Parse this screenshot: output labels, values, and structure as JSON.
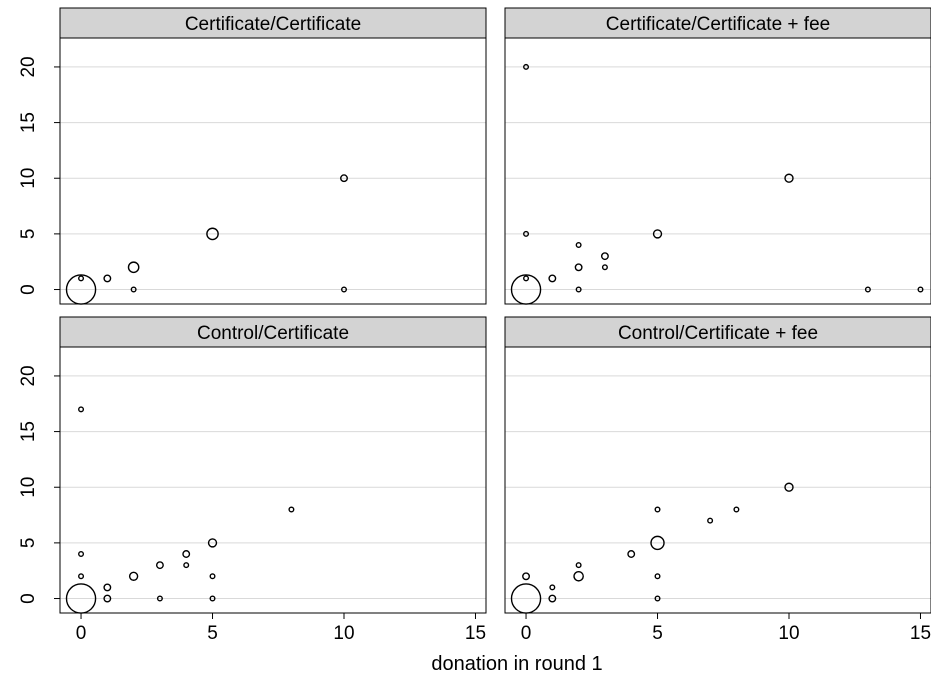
{
  "chart_data": {
    "type": "scatter",
    "xlabel": "donation in round 1",
    "ylabel": "",
    "xlim": [
      -0.8,
      15.4
    ],
    "ylim": [
      -1.3,
      22.6
    ],
    "xticks": [
      0,
      5,
      10,
      15
    ],
    "yticks": [
      0,
      5,
      10,
      15,
      20
    ],
    "grid": true,
    "marker_size_meaning": "point count",
    "panels": [
      {
        "title": "Certificate/Certificate",
        "points": [
          {
            "x": 0,
            "y": 0,
            "n": 40
          },
          {
            "x": 0,
            "y": 1,
            "n": 1
          },
          {
            "x": 1,
            "y": 1,
            "n": 2
          },
          {
            "x": 2,
            "y": 2,
            "n": 5
          },
          {
            "x": 2,
            "y": 0,
            "n": 1
          },
          {
            "x": 5,
            "y": 5,
            "n": 6
          },
          {
            "x": 10,
            "y": 10,
            "n": 2
          },
          {
            "x": 10,
            "y": 0,
            "n": 1
          }
        ]
      },
      {
        "title": "Certificate/Certificate + fee",
        "points": [
          {
            "x": 0,
            "y": 0,
            "n": 40
          },
          {
            "x": 0,
            "y": 1,
            "n": 1
          },
          {
            "x": 0,
            "y": 5,
            "n": 1
          },
          {
            "x": 0,
            "y": 20,
            "n": 1
          },
          {
            "x": 1,
            "y": 1,
            "n": 2
          },
          {
            "x": 2,
            "y": 4,
            "n": 1
          },
          {
            "x": 2,
            "y": 2,
            "n": 2
          },
          {
            "x": 2,
            "y": 0,
            "n": 1
          },
          {
            "x": 3,
            "y": 3,
            "n": 2
          },
          {
            "x": 3,
            "y": 2,
            "n": 1
          },
          {
            "x": 5,
            "y": 5,
            "n": 3
          },
          {
            "x": 10,
            "y": 10,
            "n": 3
          },
          {
            "x": 13,
            "y": 0,
            "n": 1
          },
          {
            "x": 15,
            "y": 0,
            "n": 1
          }
        ]
      },
      {
        "title": "Control/Certificate",
        "points": [
          {
            "x": 0,
            "y": 0,
            "n": 40
          },
          {
            "x": 0,
            "y": 2,
            "n": 1
          },
          {
            "x": 0,
            "y": 4,
            "n": 1
          },
          {
            "x": 0,
            "y": 17,
            "n": 1
          },
          {
            "x": 1,
            "y": 1,
            "n": 2
          },
          {
            "x": 1,
            "y": 0,
            "n": 2
          },
          {
            "x": 2,
            "y": 2,
            "n": 3
          },
          {
            "x": 3,
            "y": 3,
            "n": 2
          },
          {
            "x": 3,
            "y": 0,
            "n": 1
          },
          {
            "x": 4,
            "y": 4,
            "n": 2
          },
          {
            "x": 4,
            "y": 3,
            "n": 1
          },
          {
            "x": 5,
            "y": 5,
            "n": 3
          },
          {
            "x": 5,
            "y": 2,
            "n": 1
          },
          {
            "x": 5,
            "y": 0,
            "n": 1
          },
          {
            "x": 8,
            "y": 8,
            "n": 1
          }
        ]
      },
      {
        "title": "Control/Certificate + fee",
        "points": [
          {
            "x": 0,
            "y": 0,
            "n": 40
          },
          {
            "x": 0,
            "y": 2,
            "n": 2
          },
          {
            "x": 1,
            "y": 1,
            "n": 1
          },
          {
            "x": 1,
            "y": 0,
            "n": 2
          },
          {
            "x": 2,
            "y": 3,
            "n": 1
          },
          {
            "x": 2,
            "y": 2,
            "n": 4
          },
          {
            "x": 4,
            "y": 4,
            "n": 2
          },
          {
            "x": 5,
            "y": 5,
            "n": 8
          },
          {
            "x": 5,
            "y": 8,
            "n": 1
          },
          {
            "x": 5,
            "y": 2,
            "n": 1
          },
          {
            "x": 5,
            "y": 0,
            "n": 1
          },
          {
            "x": 7,
            "y": 7,
            "n": 1
          },
          {
            "x": 8,
            "y": 8,
            "n": 1
          },
          {
            "x": 10,
            "y": 10,
            "n": 3
          }
        ]
      }
    ]
  },
  "colors": {
    "strip_fill": "#d3d3d3",
    "grid": "#d9d9d9",
    "frame": "#000000",
    "marker": "#000000",
    "background": "#ffffff"
  }
}
